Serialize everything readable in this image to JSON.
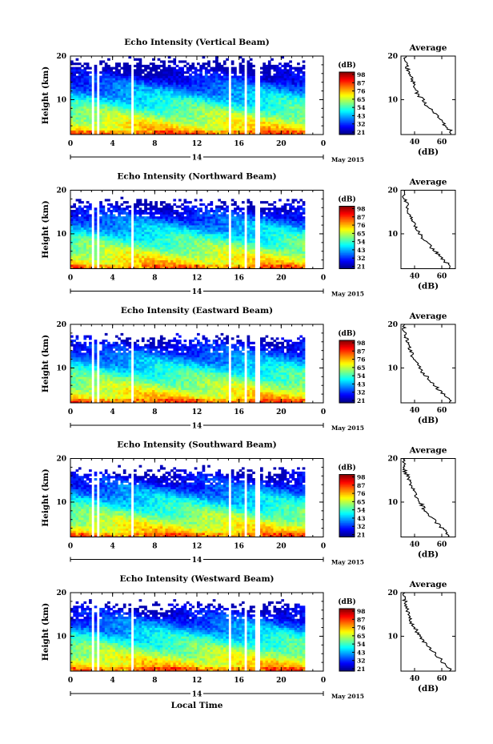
{
  "chart_data": [
    {
      "type": "heatmap",
      "title": "Echo Intensity (Vertical Beam)",
      "ylabel": "Height (km)",
      "xlabel": "",
      "xlim": [
        0,
        24
      ],
      "ylim": [
        2,
        20
      ],
      "x_ticks": [
        "0",
        "4",
        "8",
        "12",
        "16",
        "20",
        "0"
      ],
      "y_ticks": [
        "20",
        "10"
      ],
      "date_label": "14",
      "month_label": "May 2015",
      "colorbar": {
        "unit": "(dB)",
        "ticks": [
          "98",
          "87",
          "76",
          "65",
          "54",
          "43",
          "32",
          "21"
        ]
      },
      "profile": {
        "title": "Average",
        "xlabel": "(dB)",
        "x_ticks": [
          "40",
          "60"
        ],
        "xlim": [
          30,
          70
        ],
        "heights": [
          2,
          3,
          4,
          5,
          6,
          7,
          8,
          9,
          10,
          11,
          12,
          13,
          14,
          15,
          16,
          17,
          18,
          19,
          20
        ],
        "values": [
          68,
          66,
          62,
          60,
          57,
          54,
          51,
          48,
          46,
          43,
          41,
          40,
          39,
          38,
          37,
          35,
          34,
          33,
          34
        ]
      }
    },
    {
      "type": "heatmap",
      "title": "Echo Intensity (Northward Beam)",
      "ylabel": "Height (km)",
      "xlabel": "",
      "xlim": [
        0,
        24
      ],
      "ylim": [
        2,
        20
      ],
      "x_ticks": [
        "0",
        "4",
        "8",
        "12",
        "16",
        "20",
        "0"
      ],
      "y_ticks": [
        "20",
        "10"
      ],
      "date_label": "14",
      "month_label": "May 2015",
      "colorbar": {
        "unit": "(dB)",
        "ticks": [
          "98",
          "87",
          "76",
          "65",
          "54",
          "43",
          "32",
          "21"
        ]
      },
      "profile": {
        "title": "Average",
        "xlabel": "(dB)",
        "x_ticks": [
          "40",
          "60"
        ],
        "xlim": [
          30,
          70
        ],
        "heights": [
          2,
          3,
          4,
          5,
          6,
          7,
          8,
          9,
          10,
          11,
          12,
          13,
          14,
          15,
          16,
          17,
          18,
          19,
          20
        ],
        "values": [
          67,
          65,
          61,
          58,
          55,
          52,
          49,
          46,
          44,
          42,
          40,
          38,
          37,
          36,
          35,
          34,
          33,
          32,
          33
        ]
      }
    },
    {
      "type": "heatmap",
      "title": "Echo Intensity (Eastward Beam)",
      "ylabel": "Height (km)",
      "xlabel": "",
      "xlim": [
        0,
        24
      ],
      "ylim": [
        2,
        20
      ],
      "x_ticks": [
        "0",
        "4",
        "8",
        "12",
        "16",
        "20",
        "0"
      ],
      "y_ticks": [
        "20",
        "10"
      ],
      "date_label": "14",
      "month_label": "May 2015",
      "colorbar": {
        "unit": "(dB)",
        "ticks": [
          "98",
          "87",
          "76",
          "65",
          "54",
          "43",
          "32",
          "21"
        ]
      },
      "profile": {
        "title": "Average",
        "xlabel": "(dB)",
        "x_ticks": [
          "40",
          "60"
        ],
        "xlim": [
          30,
          70
        ],
        "heights": [
          2,
          3,
          4,
          5,
          6,
          7,
          8,
          9,
          10,
          11,
          12,
          13,
          14,
          15,
          16,
          17,
          18,
          19,
          20
        ],
        "values": [
          67,
          64,
          61,
          58,
          55,
          52,
          49,
          46,
          44,
          42,
          40,
          38,
          37,
          36,
          35,
          34,
          33,
          32,
          33
        ]
      }
    },
    {
      "type": "heatmap",
      "title": "Echo Intensity (Southward Beam)",
      "ylabel": "Height (km)",
      "xlabel": "",
      "xlim": [
        0,
        24
      ],
      "ylim": [
        2,
        20
      ],
      "x_ticks": [
        "0",
        "4",
        "8",
        "12",
        "16",
        "20",
        "0"
      ],
      "y_ticks": [
        "20",
        "10"
      ],
      "date_label": "14",
      "month_label": "May 2015",
      "colorbar": {
        "unit": "(dB)",
        "ticks": [
          "98",
          "87",
          "76",
          "65",
          "54",
          "43",
          "32",
          "21"
        ]
      },
      "profile": {
        "title": "Average",
        "xlabel": "(dB)",
        "x_ticks": [
          "40",
          "60"
        ],
        "xlim": [
          30,
          70
        ],
        "heights": [
          2,
          3,
          4,
          5,
          6,
          7,
          8,
          9,
          10,
          11,
          12,
          13,
          14,
          15,
          16,
          17,
          18,
          19,
          20
        ],
        "values": [
          66,
          64,
          60,
          57,
          54,
          51,
          48,
          46,
          44,
          42,
          40,
          39,
          37,
          36,
          35,
          33,
          32,
          32,
          33
        ]
      }
    },
    {
      "type": "heatmap",
      "title": "Echo Intensity (Westward Beam)",
      "ylabel": "Height (km)",
      "xlabel": "Local Time",
      "xlim": [
        0,
        24
      ],
      "ylim": [
        2,
        20
      ],
      "x_ticks": [
        "0",
        "4",
        "8",
        "12",
        "16",
        "20",
        "0"
      ],
      "y_ticks": [
        "20",
        "10"
      ],
      "date_label": "14",
      "month_label": "May 2015",
      "colorbar": {
        "unit": "(dB)",
        "ticks": [
          "98",
          "87",
          "76",
          "65",
          "54",
          "43",
          "32",
          "21"
        ]
      },
      "profile": {
        "title": "Average",
        "xlabel": "(dB)",
        "x_ticks": [
          "40",
          "60"
        ],
        "xlim": [
          30,
          70
        ],
        "heights": [
          2,
          3,
          4,
          5,
          6,
          7,
          8,
          9,
          10,
          11,
          12,
          13,
          14,
          15,
          16,
          17,
          18,
          19,
          20
        ],
        "values": [
          67,
          65,
          61,
          58,
          55,
          52,
          49,
          46,
          44,
          42,
          40,
          38,
          37,
          36,
          35,
          34,
          33,
          32,
          33
        ]
      }
    }
  ]
}
